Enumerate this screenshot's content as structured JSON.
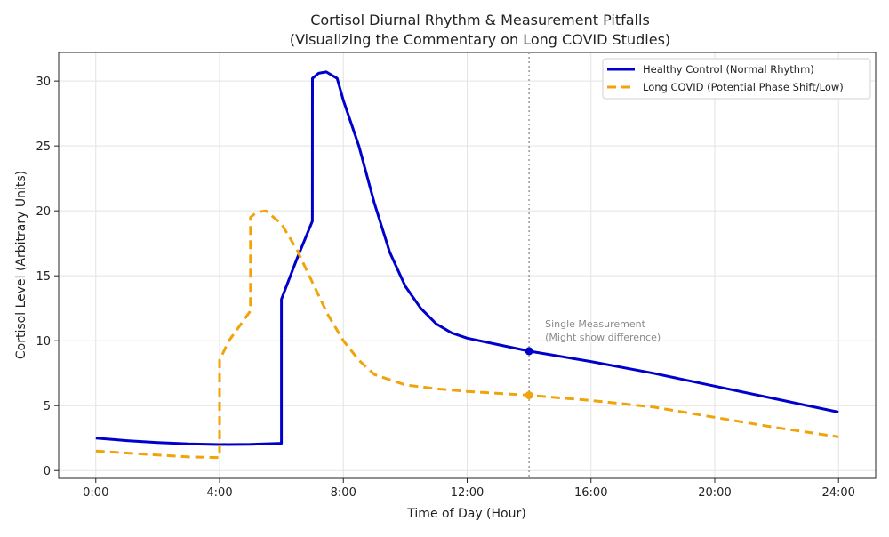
{
  "chart_data": {
    "type": "line",
    "title": "Cortisol Diurnal Rhythm & Measurement Pitfalls",
    "subtitle": "(Visualizing the Commentary on Long COVID Studies)",
    "xlabel": "Time of Day (Hour)",
    "ylabel": "Cortisol Level (Arbitrary Units)",
    "xlim": [
      -1.2,
      25.2
    ],
    "ylim": [
      -0.6,
      32.2
    ],
    "xticks": [
      0,
      4,
      8,
      12,
      16,
      20,
      24
    ],
    "xtick_labels": [
      "0:00",
      "4:00",
      "8:00",
      "12:00",
      "16:00",
      "20:00",
      "24:00"
    ],
    "yticks": [
      0,
      5,
      10,
      15,
      20,
      25,
      30
    ],
    "ytick_labels": [
      "0",
      "5",
      "10",
      "15",
      "20",
      "25",
      "30"
    ],
    "grid": true,
    "legend_placement": "top-right",
    "series": [
      {
        "name": "Healthy Control (Normal Rhythm)",
        "color": "#0000cc",
        "style": "solid",
        "x": [
          0,
          1,
          2,
          3,
          4,
          5,
          6,
          6.0001,
          6.5,
          7,
          7.0001,
          7.2,
          7.45,
          7.8,
          8,
          8.5,
          9,
          9.5,
          10,
          10.5,
          11,
          11.5,
          12,
          13,
          14,
          16,
          18,
          20,
          22,
          24
        ],
        "y": [
          2.5,
          2.3,
          2.15,
          2.05,
          2.0,
          2.02,
          2.1,
          13.2,
          16.3,
          19.2,
          30.2,
          30.6,
          30.7,
          30.2,
          28.5,
          25,
          20.6,
          16.8,
          14.2,
          12.5,
          11.3,
          10.6,
          10.2,
          9.7,
          9.2,
          8.4,
          7.5,
          6.5,
          5.5,
          4.5
        ]
      },
      {
        "name": "Long COVID (Potential Phase Shift/Low)",
        "color": "#f0a30a",
        "style": "dashed",
        "x": [
          0,
          1,
          2,
          3,
          4,
          4.0001,
          4.3,
          5,
          5.0001,
          5.2,
          5.5,
          6,
          6.5,
          7,
          7.5,
          8,
          8.5,
          9,
          10,
          11,
          12,
          14,
          16,
          18,
          20,
          22,
          24
        ],
        "y": [
          1.5,
          1.35,
          1.2,
          1.05,
          1.0,
          8.5,
          10,
          12.3,
          19.5,
          19.9,
          20,
          19,
          17,
          14.5,
          12,
          10,
          8.5,
          7.4,
          6.6,
          6.3,
          6.1,
          5.8,
          5.4,
          4.9,
          4.1,
          3.3,
          2.6
        ]
      }
    ],
    "measurement": {
      "x": 14,
      "values": [
        9.2,
        5.8
      ],
      "line_color": "#999999",
      "annotation": [
        "Single Measurement",
        "(Might show difference)"
      ]
    }
  }
}
